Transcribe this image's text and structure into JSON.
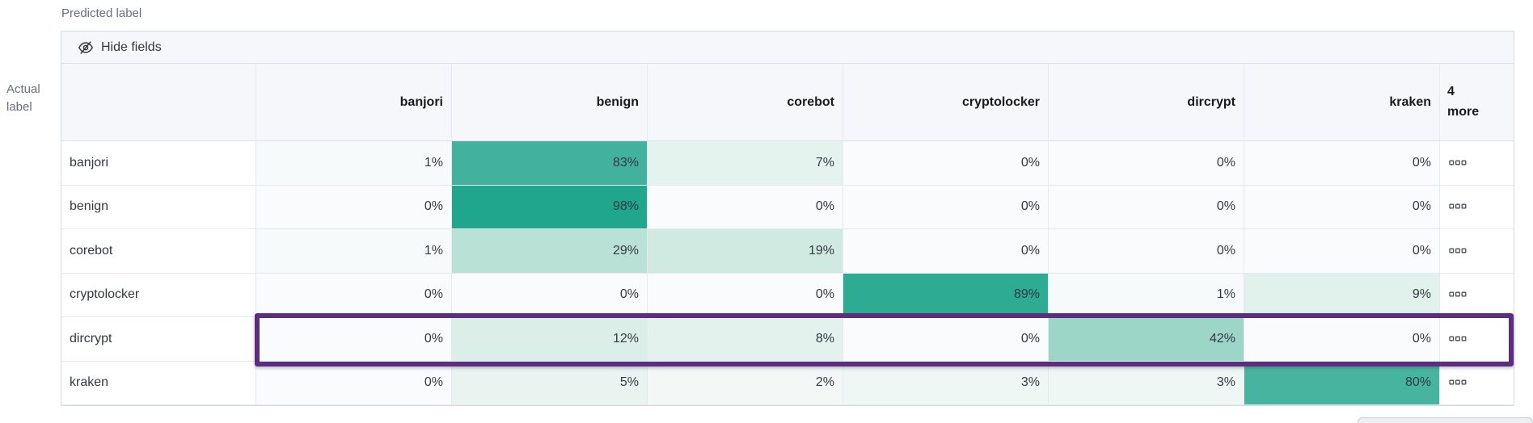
{
  "axis": {
    "predicted": "Predicted label",
    "actual_line1": "Actual",
    "actual_line2": "label"
  },
  "toolbar": {
    "hide_fields": "Hide fields"
  },
  "table": {
    "columns": [
      "banjori",
      "benign",
      "corebot",
      "cryptolocker",
      "dircrypt",
      "kraken"
    ],
    "more_column": {
      "line1": "4",
      "line2": "more"
    },
    "more_cell_icon": "boxes-horizontal-icon",
    "rows": [
      {
        "label": "banjori",
        "values": [
          "1%",
          "83%",
          "7%",
          "0%",
          "0%",
          "0%"
        ],
        "highlighted": false
      },
      {
        "label": "benign",
        "values": [
          "0%",
          "98%",
          "0%",
          "0%",
          "0%",
          "0%"
        ],
        "highlighted": false
      },
      {
        "label": "corebot",
        "values": [
          "1%",
          "29%",
          "19%",
          "0%",
          "0%",
          "0%"
        ],
        "highlighted": false
      },
      {
        "label": "cryptolocker",
        "values": [
          "0%",
          "0%",
          "0%",
          "89%",
          "1%",
          "9%"
        ],
        "highlighted": false
      },
      {
        "label": "dircrypt",
        "values": [
          "0%",
          "12%",
          "8%",
          "0%",
          "42%",
          "0%"
        ],
        "highlighted": true
      },
      {
        "label": "kraken",
        "values": [
          "0%",
          "5%",
          "2%",
          "3%",
          "3%",
          "80%"
        ],
        "highlighted": false
      }
    ]
  },
  "chart_data": {
    "type": "heatmap",
    "xlabel": "Predicted label",
    "ylabel": "Actual label",
    "x": [
      "banjori",
      "benign",
      "corebot",
      "cryptolocker",
      "dircrypt",
      "kraken"
    ],
    "y": [
      "banjori",
      "benign",
      "corebot",
      "cryptolocker",
      "dircrypt",
      "kraken"
    ],
    "values_percent": [
      [
        1,
        83,
        7,
        0,
        0,
        0
      ],
      [
        0,
        98,
        0,
        0,
        0,
        0
      ],
      [
        1,
        29,
        19,
        0,
        0,
        0
      ],
      [
        0,
        0,
        0,
        89,
        1,
        9
      ],
      [
        0,
        12,
        8,
        0,
        42,
        0
      ],
      [
        0,
        5,
        2,
        3,
        3,
        80
      ]
    ],
    "hidden_columns_indicator": "4 more",
    "highlighted_y": "dircrypt",
    "legend_position": "none",
    "grid": true
  },
  "colors": {
    "highlight_border": "#5C2E80",
    "header_bg": "#F5F7FA",
    "cell_text": "#333942",
    "scale_base": "#1FA68C",
    "cell_values": {
      "0%": "#FAFBFD",
      "1%": "#F7FAFB",
      "2%": "#F3F8F7",
      "3%": "#EFF7F4",
      "5%": "#E9F4F0",
      "7%": "#E5F3EE",
      "8%": "#E3F2ED",
      "9%": "#E1F1EB",
      "12%": "#DBEEE8",
      "19%": "#D0EAE1",
      "29%": "#BAE1D5",
      "42%": "#9CD6C7",
      "80%": "#47B4A0",
      "83%": "#42B19D",
      "89%": "#2EAB93",
      "98%": "#1FA68C"
    }
  }
}
